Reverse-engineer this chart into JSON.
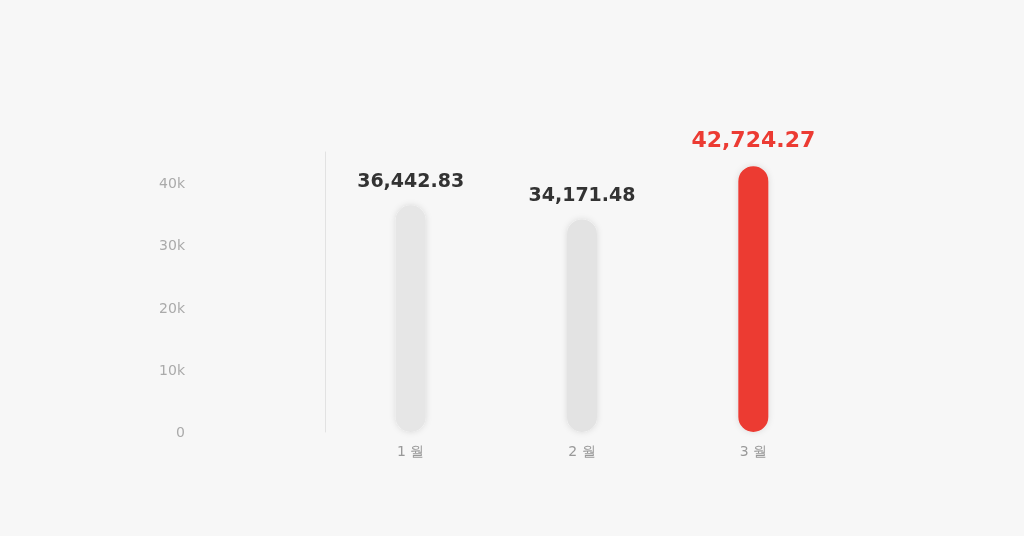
{
  "chart_data": {
    "type": "bar",
    "categories": [
      "1 월",
      "2 월",
      "3 월"
    ],
    "values": [
      36442.83,
      34171.48,
      42724.27
    ],
    "colors": [
      "#e6e6e6",
      "#e3e3e3",
      "#ec3b33"
    ],
    "value_labels": [
      "36,442.83",
      "34,171.48",
      "42,724.27"
    ],
    "ylim": [
      0,
      45000
    ],
    "yticks": [
      0,
      {
        "value": 10000,
        "label": "10k"
      },
      {
        "value": 20000,
        "label": "20k"
      },
      {
        "value": 30000,
        "label": "30k"
      },
      {
        "value": 40000,
        "label": "40k"
      }
    ],
    "grid": false
  }
}
